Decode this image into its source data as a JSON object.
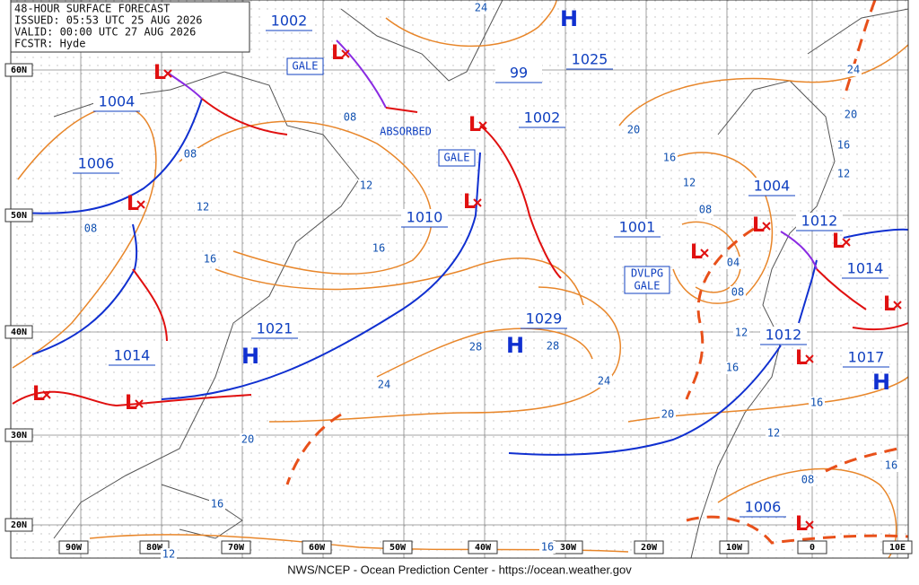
{
  "header": {
    "lines": [
      "48-HOUR SURFACE FORECAST",
      "ISSUED: 05:53 UTC 25 AUG 2026",
      "VALID:  00:00 UTC 27 AUG 2026",
      "FCSTR:  Hyde"
    ]
  },
  "footer": "NWS/NCEP - Ocean Prediction Center - https://ocean.weather.gov",
  "lat_labels": [
    "60N",
    "50N",
    "40N",
    "30N",
    "20N"
  ],
  "lon_labels": [
    "90W",
    "80W",
    "70W",
    "60W",
    "50W",
    "40W",
    "30W",
    "20W",
    "10W",
    "0",
    "10E"
  ],
  "pressure_centers": [
    "1002",
    "1004",
    "1006",
    "99",
    "1025",
    "1002",
    "1010",
    "1001",
    "1004",
    "1012",
    "1014",
    "1029",
    "1021",
    "1014",
    "1012",
    "1017",
    "1006"
  ],
  "highs": [
    "H",
    "H",
    "H",
    "H"
  ],
  "lows": [
    "L",
    "L",
    "L",
    "L",
    "L",
    "L",
    "L",
    "L",
    "L",
    "L",
    "L",
    "L",
    "L"
  ],
  "isobar_labels": [
    "24",
    "08",
    "08",
    "12",
    "12",
    "08",
    "16",
    "16",
    "20",
    "16",
    "12",
    "08",
    "04",
    "08",
    "12",
    "16",
    "20",
    "24",
    "24",
    "28",
    "28",
    "20",
    "16",
    "12",
    "16",
    "24",
    "20",
    "16",
    "12",
    "16",
    "12",
    "08",
    "16"
  ],
  "annotations": [
    "GALE",
    "ABSORBED",
    "GALE"
  ],
  "developing_gale": [
    "DVLPG",
    "GALE"
  ]
}
